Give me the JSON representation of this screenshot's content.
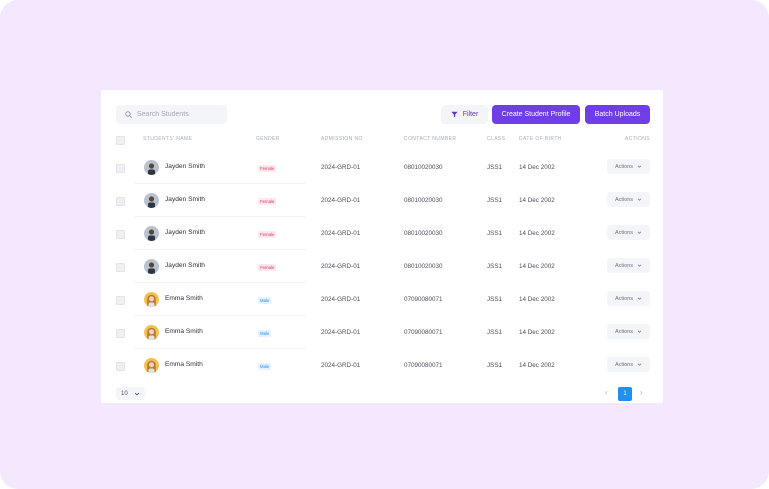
{
  "toolbar": {
    "search_placeholder": "Search Students",
    "filter_label": "Filter",
    "create_label": "Create Student Profile",
    "batch_label": "Batch Uploads"
  },
  "table": {
    "headers": {
      "name": "STUDENTS' NAME",
      "gender": "GENDER",
      "admission": "ADMISSION NO",
      "contact": "CONTACT NUMBER",
      "class": "CLASS",
      "dob": "DATE OF BIRTH",
      "actions": "ACTIONS"
    },
    "rows": [
      {
        "name": "Jayden Smith",
        "gender": "Female",
        "admission": "2024-GRD-01",
        "contact": "08010020030",
        "class": "JSS1",
        "dob": "14 Dec 2002",
        "action": "Actions"
      },
      {
        "name": "Jayden Smith",
        "gender": "Female",
        "admission": "2024-GRD-01",
        "contact": "08010020030",
        "class": "JSS1",
        "dob": "14 Dec 2002",
        "action": "Actions"
      },
      {
        "name": "Jayden Smith",
        "gender": "Female",
        "admission": "2024-GRD-01",
        "contact": "08010020030",
        "class": "JSS1",
        "dob": "14 Dec 2002",
        "action": "Actions"
      },
      {
        "name": "Jayden Smith",
        "gender": "Female",
        "admission": "2024-GRD-01",
        "contact": "08010020030",
        "class": "JSS1",
        "dob": "14 Dec 2002",
        "action": "Actions"
      },
      {
        "name": "Emma Smith",
        "gender": "Male",
        "admission": "2024-GRD-01",
        "contact": "07090080071",
        "class": "JSS1",
        "dob": "14 Dec 2002",
        "action": "Actions"
      },
      {
        "name": "Emma Smith",
        "gender": "Male",
        "admission": "2024-GRD-01",
        "contact": "07090080071",
        "class": "JSS1",
        "dob": "14 Dec 2002",
        "action": "Actions"
      },
      {
        "name": "Emma Smith",
        "gender": "Male",
        "admission": "2024-GRD-01",
        "contact": "07090080071",
        "class": "JSS1",
        "dob": "14 Dec 2002",
        "action": "Actions"
      }
    ]
  },
  "pagination": {
    "page_size": "10",
    "current_page": "1",
    "prev_glyph": "‹",
    "next_glyph": "›"
  },
  "colors": {
    "background": "#f3e8fe",
    "primary": "#6f3ee6",
    "page_active": "#1e90f0",
    "female": "#e0335f",
    "male": "#1e90ff"
  },
  "icons": {
    "search": "search-icon",
    "filter": "filter-icon",
    "dropdown": "chevron-down-icon",
    "avatar_male": "avatar-male",
    "avatar_female": "avatar-female"
  }
}
